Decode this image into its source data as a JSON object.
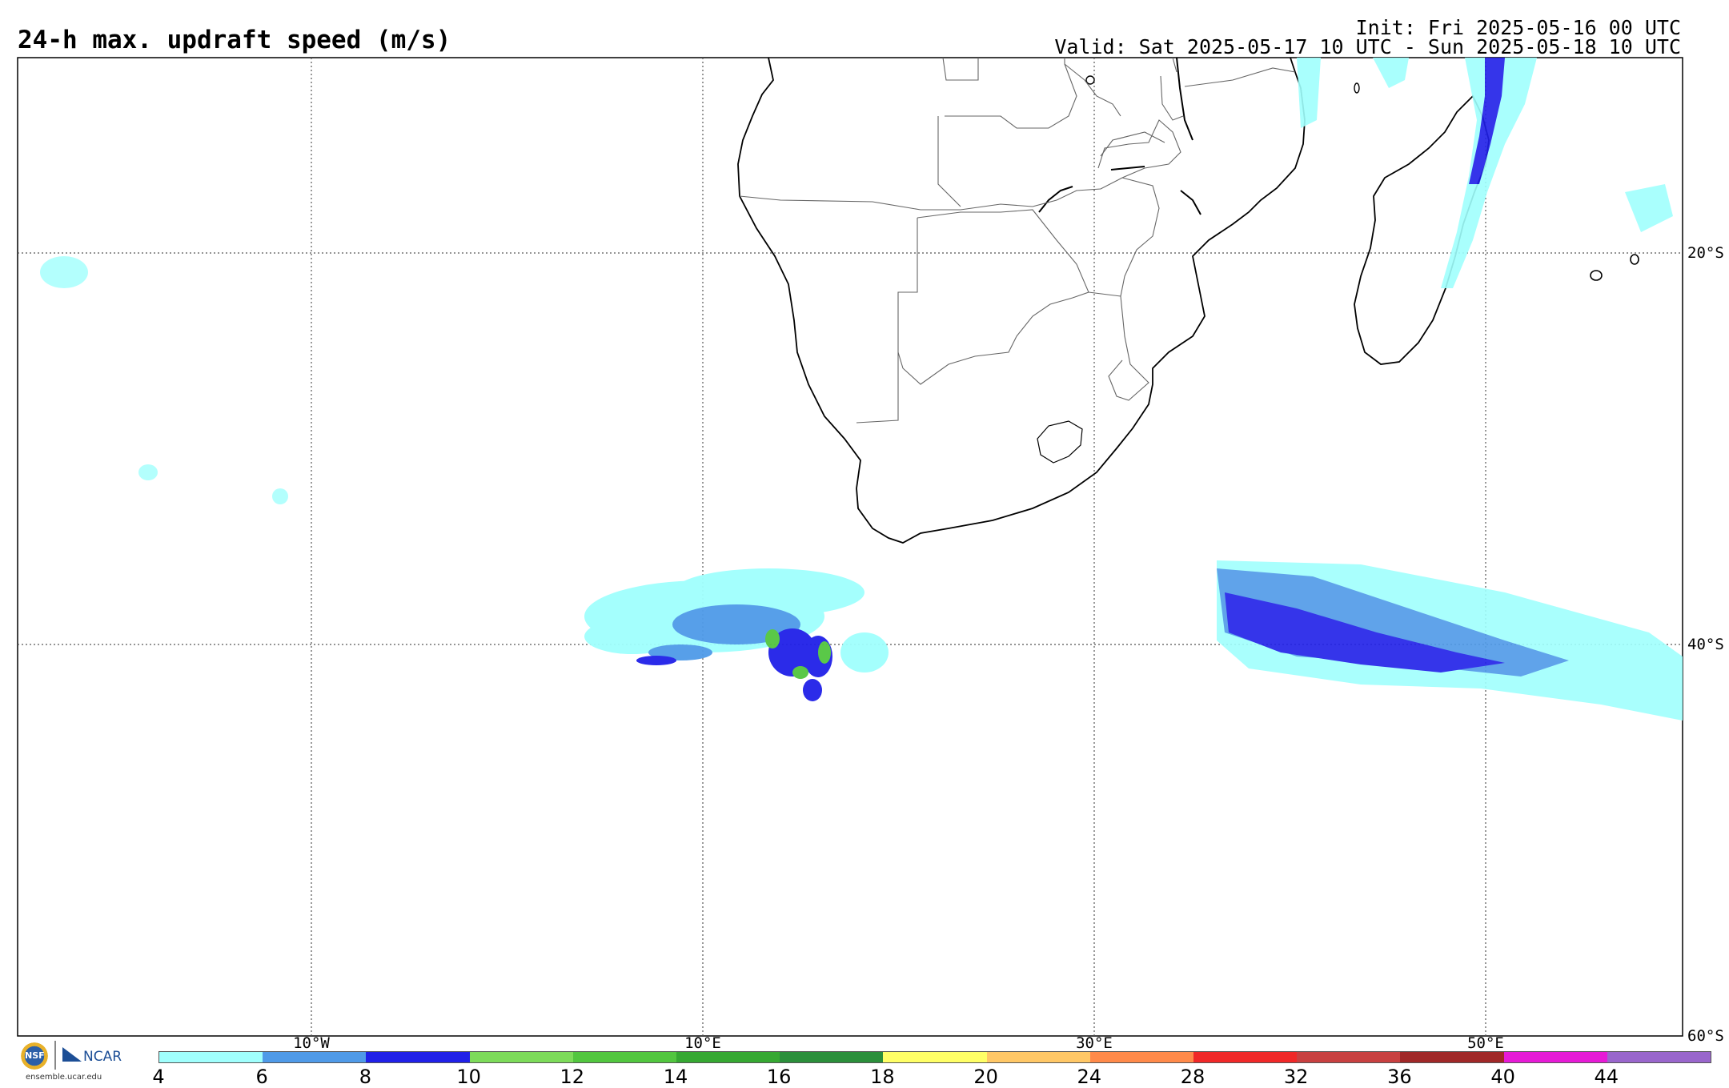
{
  "header": {
    "title": "24-h max. updraft speed (m/s)",
    "init": "Init: Fri 2025-05-16 00 UTC",
    "valid": "Valid: Sat 2025-05-17 10 UTC - Sun 2025-05-18 10 UTC"
  },
  "map": {
    "region": "Southern Africa and South Atlantic / SW Indian Ocean",
    "lon_labels": [
      "10°W",
      "10°E",
      "30°E",
      "50°E"
    ],
    "lat_labels": [
      "20°S",
      "40°S",
      "60°S"
    ]
  },
  "colorbar": {
    "labels": [
      "4",
      "6",
      "8",
      "10",
      "12",
      "14",
      "16",
      "18",
      "20",
      "24",
      "28",
      "32",
      "36",
      "40",
      "44"
    ],
    "colors": [
      "#a0fffd",
      "#4f9ae8",
      "#2020e8",
      "#7ddb5a",
      "#52c63f",
      "#36a832",
      "#2b8f3b",
      "#ffff66",
      "#ffc766",
      "#ff8a4a",
      "#f02828",
      "#c84040",
      "#a02828",
      "#e61ad6",
      "#9966cc"
    ]
  },
  "logos": {
    "nsf": "NSF",
    "ncar": "NCAR",
    "site": "ensemble.ucar.edu"
  }
}
